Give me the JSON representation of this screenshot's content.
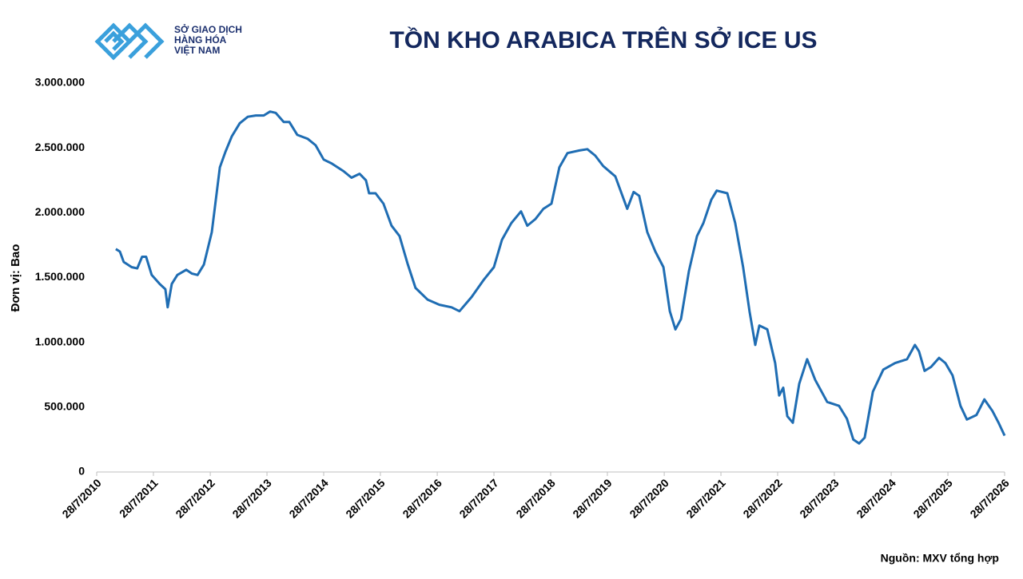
{
  "logo": [
    "SỞ GIAO DỊCH",
    "HÀNG HÓA",
    "VIỆT NAM"
  ],
  "source": "Nguồn: MXV tổng hợp",
  "chart_data": {
    "type": "line",
    "title": "TỒN KHO ARABICA TRÊN SỞ ICE US",
    "y_label": "Đơn vị: Bao",
    "xlim": [
      "2010-07-28",
      "2026-07-28"
    ],
    "xticks": [
      {
        "value": "2010-07-28",
        "label": "28/7/2010"
      },
      {
        "value": "2011-07-28",
        "label": "28/7/2011"
      },
      {
        "value": "2012-07-28",
        "label": "28/7/2012"
      },
      {
        "value": "2013-07-28",
        "label": "28/7/2013"
      },
      {
        "value": "2014-07-28",
        "label": "28/7/2014"
      },
      {
        "value": "2015-07-28",
        "label": "28/7/2015"
      },
      {
        "value": "2016-07-28",
        "label": "28/7/2016"
      },
      {
        "value": "2017-07-28",
        "label": "28/7/2017"
      },
      {
        "value": "2018-07-28",
        "label": "28/7/2018"
      },
      {
        "value": "2019-07-28",
        "label": "28/7/2019"
      },
      {
        "value": "2020-07-28",
        "label": "28/7/2020"
      },
      {
        "value": "2021-07-28",
        "label": "28/7/2021"
      },
      {
        "value": "2022-07-28",
        "label": "28/7/2022"
      },
      {
        "value": "2023-07-28",
        "label": "28/7/2023"
      },
      {
        "value": "2024-07-28",
        "label": "28/7/2024"
      },
      {
        "value": "2025-07-28",
        "label": "28/7/2025"
      },
      {
        "value": "2026-07-28",
        "label": "28/7/2026"
      }
    ],
    "ylim": [
      0,
      3000000
    ],
    "yticks": [
      0,
      {
        "value": 500000,
        "label": "500.000"
      },
      {
        "value": 1000000,
        "label": "1.000.000"
      },
      {
        "value": 1500000,
        "label": "1.500.000"
      },
      {
        "value": 2000000,
        "label": "2.000.000"
      },
      {
        "value": 2500000,
        "label": "2.500.000"
      },
      {
        "value": 3000000,
        "label": "3.000.000"
      }
    ],
    "grid": false,
    "x": [
      "2010-11-28",
      "2010-12-24",
      "2011-01-18",
      "2011-03-10",
      "2011-04-15",
      "2011-05-16",
      "2011-06-11",
      "2011-07-17",
      "2011-09-07",
      "2011-10-13",
      "2011-10-28",
      "2011-11-23",
      "2011-12-29",
      "2012-02-24",
      "2012-04-01",
      "2012-05-07",
      "2012-06-17",
      "2012-08-07",
      "2012-09-28",
      "2012-11-03",
      "2012-12-14",
      "2013-02-03",
      "2013-03-27",
      "2013-05-17",
      "2013-07-07",
      "2013-08-17",
      "2013-09-22",
      "2013-11-13",
      "2013-12-19",
      "2014-02-08",
      "2014-04-16",
      "2014-06-06",
      "2014-07-28",
      "2014-09-17",
      "2014-12-03",
      "2015-01-23",
      "2015-03-16",
      "2015-04-26",
      "2015-05-16",
      "2015-06-27",
      "2015-08-17",
      "2015-10-08",
      "2015-11-28",
      "2016-01-18",
      "2016-03-10",
      "2016-05-26",
      "2016-08-11",
      "2016-10-28",
      "2016-12-18",
      "2017-03-06",
      "2017-05-22",
      "2017-07-28",
      "2017-09-17",
      "2017-11-17",
      "2018-01-18",
      "2018-02-28",
      "2018-04-20",
      "2018-06-11",
      "2018-08-02",
      "2018-09-22",
      "2018-11-13",
      "2019-01-29",
      "2019-03-21",
      "2019-05-11",
      "2019-07-01",
      "2019-09-17",
      "2019-12-03",
      "2020-01-13",
      "2020-02-18",
      "2020-04-10",
      "2020-06-01",
      "2020-07-23",
      "2020-09-02",
      "2020-10-08",
      "2020-11-13",
      "2021-01-03",
      "2021-02-24",
      "2021-04-06",
      "2021-05-27",
      "2021-07-01",
      "2021-09-07",
      "2021-10-28",
      "2021-12-18",
      "2022-01-28",
      "2022-03-06",
      "2022-04-01",
      "2022-05-22",
      "2022-07-12",
      "2022-08-07",
      "2022-09-02",
      "2022-09-28",
      "2022-11-03",
      "2022-12-14",
      "2023-02-03",
      "2023-03-27",
      "2023-06-12",
      "2023-08-27",
      "2023-10-17",
      "2023-11-27",
      "2024-01-03",
      "2024-02-08",
      "2024-04-01",
      "2024-06-07",
      "2024-08-22",
      "2024-11-07",
      "2024-12-28",
      "2025-01-23",
      "2025-02-28",
      "2025-04-10",
      "2025-06-01",
      "2025-07-12",
      "2025-08-27",
      "2025-10-17",
      "2025-11-27",
      "2026-01-28",
      "2026-03-20",
      "2026-05-11",
      "2026-06-21",
      "2026-07-28"
    ],
    "series": [
      {
        "name": "Tồn kho",
        "color": "#1f6db3",
        "values": [
          1720000,
          1700000,
          1620000,
          1580000,
          1570000,
          1660000,
          1660000,
          1520000,
          1450000,
          1410000,
          1270000,
          1450000,
          1520000,
          1560000,
          1530000,
          1520000,
          1600000,
          1850000,
          2350000,
          2470000,
          2590000,
          2690000,
          2740000,
          2750000,
          2750000,
          2780000,
          2770000,
          2700000,
          2700000,
          2600000,
          2570000,
          2520000,
          2410000,
          2380000,
          2320000,
          2270000,
          2300000,
          2250000,
          2150000,
          2150000,
          2070000,
          1900000,
          1820000,
          1610000,
          1420000,
          1330000,
          1290000,
          1270000,
          1240000,
          1350000,
          1480000,
          1580000,
          1790000,
          1920000,
          2010000,
          1900000,
          1950000,
          2030000,
          2070000,
          2350000,
          2460000,
          2480000,
          2490000,
          2440000,
          2360000,
          2280000,
          2030000,
          2160000,
          2130000,
          1850000,
          1700000,
          1580000,
          1240000,
          1100000,
          1180000,
          1550000,
          1820000,
          1920000,
          2100000,
          2170000,
          2150000,
          1920000,
          1580000,
          1240000,
          980000,
          1130000,
          1100000,
          840000,
          590000,
          650000,
          430000,
          380000,
          680000,
          870000,
          710000,
          540000,
          510000,
          410000,
          250000,
          220000,
          265000,
          620000,
          790000,
          840000,
          870000,
          980000,
          930000,
          780000,
          810000,
          880000,
          840000,
          745000,
          510000,
          405000,
          440000,
          560000,
          470000,
          375000,
          280000
        ]
      }
    ]
  }
}
